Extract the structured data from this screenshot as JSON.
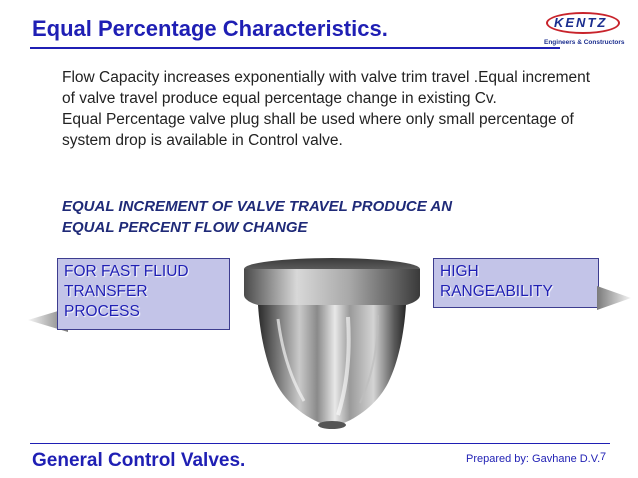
{
  "slide": {
    "title": "Equal Percentage Characteristics.",
    "logo": {
      "word": "KENTZ",
      "tagline": "Engineers & Constructors",
      "colors": {
        "ring": "#c8232b",
        "text": "#1b2e8f"
      }
    },
    "paragraphs": [
      "Flow Capacity increases exponentially with valve trim travel .Equal increment of valve travel produce equal percentage change in existing Cv.",
      "Equal Percentage valve plug shall be used  where only small percentage of system drop  is available in Control valve."
    ],
    "emphasis": {
      "line1": "EQUAL INCREMENT OF VALVE TRAVEL PRODUCE AN",
      "line2": "EQUAL PERCENT FLOW CHANGE"
    },
    "callout_left": {
      "line1": "FOR FAST FLIUD",
      "line2": "TRANSFER",
      "line3": "PROCESS"
    },
    "callout_right": {
      "line1": "HIGH",
      "line2": "RANGEABILITY"
    },
    "image_subject": "valve-plug-photo",
    "footer": {
      "left": "General Control Valves.",
      "prepared_by": "Prepared by: Gavhane D.V.",
      "page_number": "7"
    },
    "colors": {
      "accent": "#1f1fb4",
      "callout_fill": "#c3c4e8",
      "emphasis": "#1f2a78"
    }
  }
}
